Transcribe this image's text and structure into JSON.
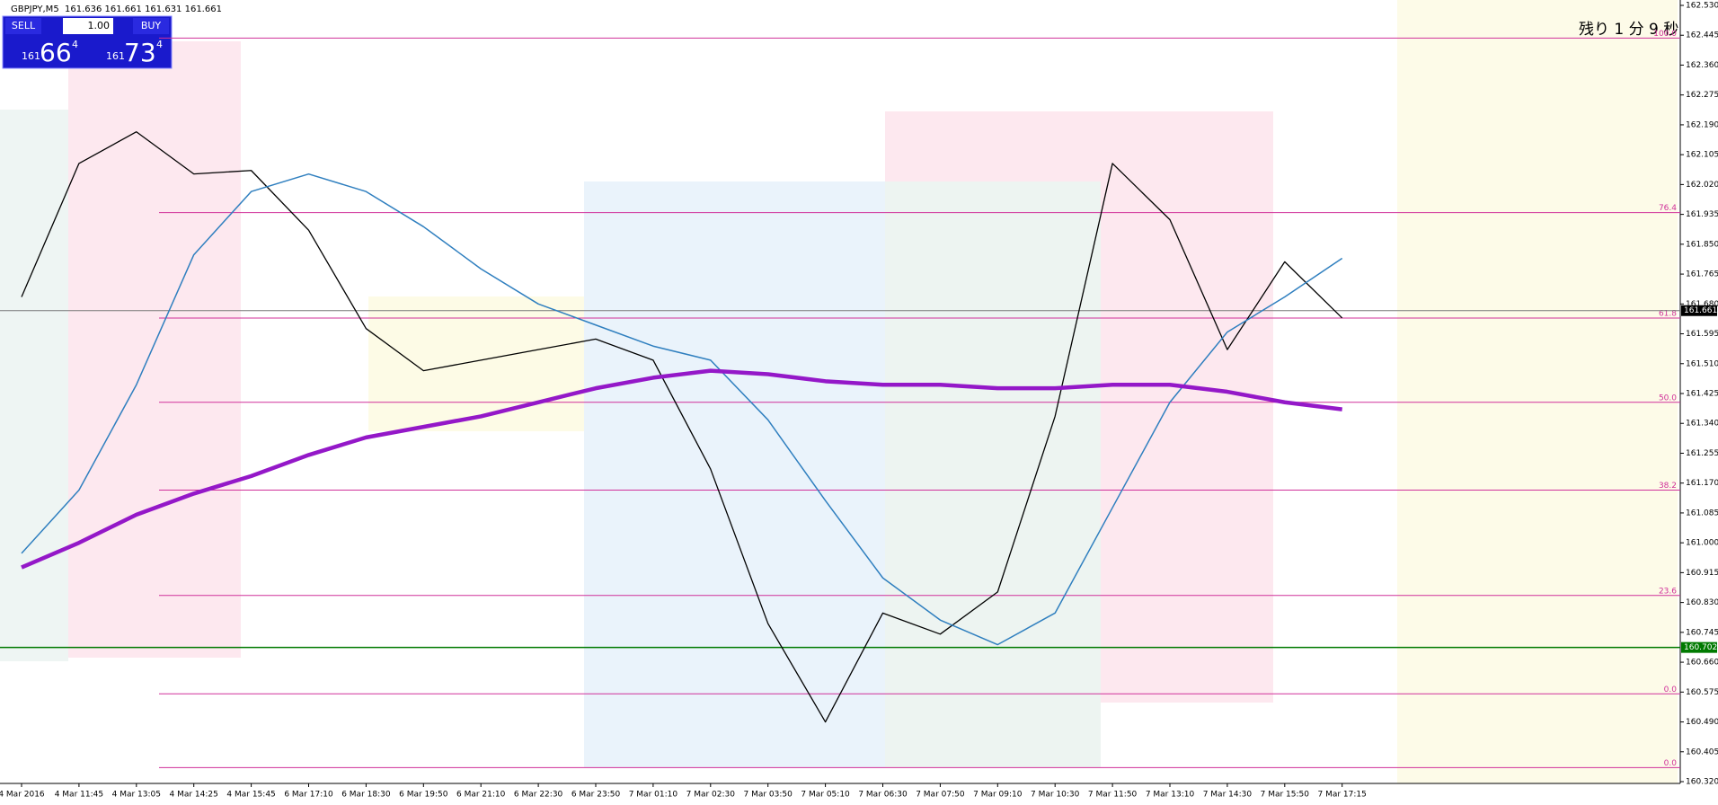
{
  "chart_data": {
    "type": "line",
    "title": "GBPJPY,M5",
    "subtitle": "161.636 161.661 161.631 161.661",
    "countdown": "残り 1 分 9 秒",
    "trade_panel": {
      "sell": "SELL",
      "buy": "BUY",
      "lot": "1.00",
      "sell_price": [
        "161",
        "66",
        "4"
      ],
      "buy_price": [
        "161",
        "73",
        "4"
      ]
    },
    "categories": [
      "4 Mar 2016",
      "4 Mar 11:45",
      "4 Mar 13:05",
      "4 Mar 14:25",
      "4 Mar 15:45",
      "6 Mar 17:10",
      "6 Mar 18:30",
      "6 Mar 19:50",
      "6 Mar 21:10",
      "6 Mar 22:30",
      "6 Mar 23:50",
      "7 Mar 01:10",
      "7 Mar 02:30",
      "7 Mar 03:50",
      "7 Mar 05:10",
      "7 Mar 06:30",
      "7 Mar 07:50",
      "7 Mar 09:10",
      "7 Mar 10:30",
      "7 Mar 11:50",
      "7 Mar 13:10",
      "7 Mar 14:30",
      "7 Mar 15:50",
      "7 Mar 17:15"
    ],
    "series": [
      {
        "color": "#000000",
        "values": [
          161.7,
          162.08,
          162.17,
          162.05,
          162.06,
          161.89,
          161.61,
          161.49,
          161.52,
          161.55,
          161.58,
          161.52,
          161.21,
          160.77,
          160.49,
          160.8,
          160.74,
          160.86,
          161.36,
          162.08,
          161.92,
          161.55,
          161.8,
          161.64
        ]
      },
      {
        "color": "#2f7fbf",
        "values": [
          160.97,
          161.15,
          161.45,
          161.82,
          162.0,
          162.05,
          162.0,
          161.9,
          161.78,
          161.68,
          161.62,
          161.56,
          161.52,
          161.35,
          161.12,
          160.9,
          160.78,
          160.71,
          160.8,
          161.1,
          161.4,
          161.6,
          161.7,
          161.81
        ]
      },
      {
        "color": "#9418c8",
        "values": [
          160.93,
          161.0,
          161.08,
          161.14,
          161.19,
          161.25,
          161.3,
          161.33,
          161.36,
          161.4,
          161.44,
          161.47,
          161.49,
          161.48,
          161.46,
          161.45,
          161.45,
          161.44,
          161.44,
          161.45,
          161.45,
          161.43,
          161.4,
          161.38
        ]
      }
    ],
    "levels": [
      {
        "label": "100.0",
        "price": 162.437
      },
      {
        "label": "76.4",
        "price": 161.94
      },
      {
        "label": "61.8",
        "price": 161.64
      },
      {
        "label": "50.0",
        "price": 161.4
      },
      {
        "label": "38.2",
        "price": 161.15
      },
      {
        "label": "23.6",
        "price": 160.85
      },
      {
        "label": "0.0",
        "price": 160.57
      },
      {
        "label": "0.0",
        "price": 160.36
      }
    ],
    "level_color": "#d0309a",
    "current_price": 161.661,
    "line_price": 160.702,
    "line_color": "#007a00",
    "ylim": [
      160.32,
      162.53
    ],
    "yticks": [
      {
        "value": 160.32,
        "label": "160.320"
      },
      160.405,
      {
        "value": 160.49,
        "label": "160.490"
      },
      160.575,
      {
        "value": 160.66,
        "label": "160.660"
      },
      160.745,
      {
        "value": 160.83,
        "label": "160.830"
      },
      160.915,
      {
        "value": 161.0,
        "label": "161.000"
      },
      161.085,
      {
        "value": 161.17,
        "label": "161.170"
      },
      161.255,
      {
        "value": 161.34,
        "label": "161.340"
      },
      161.425,
      {
        "value": 161.51,
        "label": "161.510"
      },
      161.595,
      {
        "value": 161.68,
        "label": "161.680"
      },
      161.765,
      {
        "value": 161.85,
        "label": "161.850"
      },
      161.935,
      {
        "value": 162.02,
        "label": "162.020"
      },
      162.105,
      {
        "value": 162.19,
        "label": "162.190"
      },
      162.275,
      {
        "value": 162.36,
        "label": "162.360"
      },
      162.445,
      {
        "value": 162.53,
        "label": "162.530"
      }
    ]
  }
}
